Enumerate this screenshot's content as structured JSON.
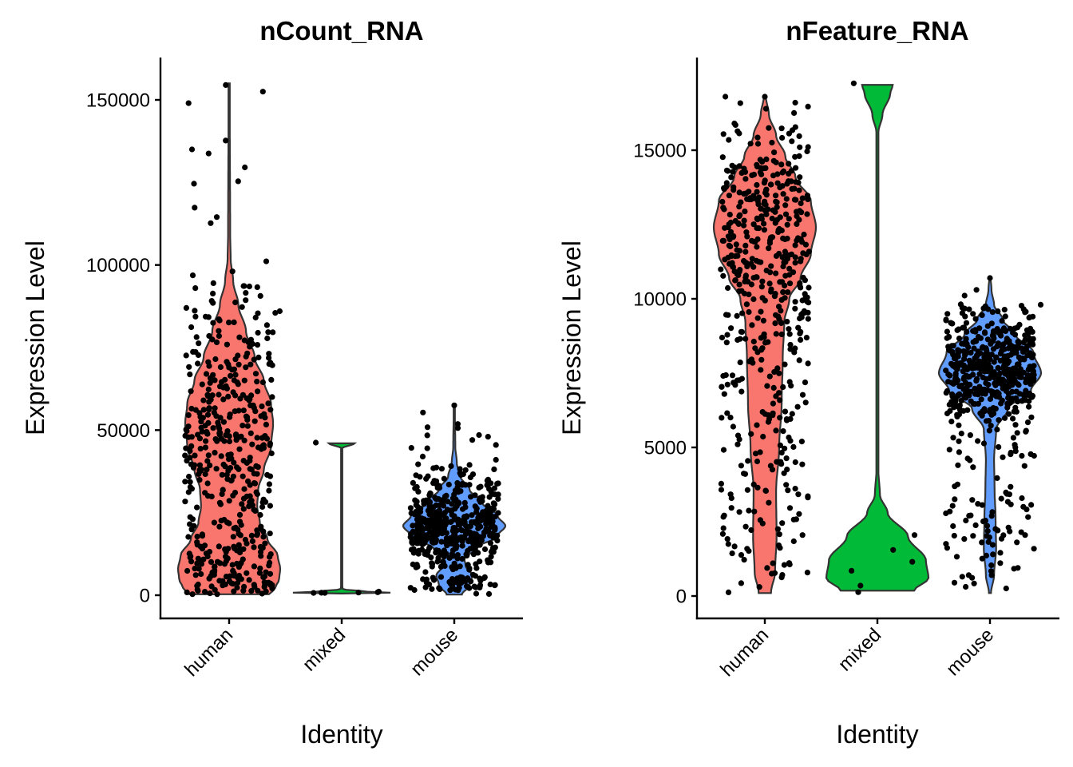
{
  "chart_data": [
    {
      "type": "violin",
      "title": "nCount_RNA",
      "xlabel": "Identity",
      "ylabel": "Expression Level",
      "categories": [
        "human",
        "mixed",
        "mouse"
      ],
      "colors": {
        "human": "#F8766D",
        "mixed": "#00BA38",
        "mouse": "#619CFF"
      },
      "yticks": [
        0,
        50000,
        100000,
        150000
      ],
      "ytick_labels": [
        "0",
        "50000",
        "100000",
        "150000"
      ],
      "ylim": [
        -7000,
        162000
      ],
      "grid": false,
      "violins": {
        "human": {
          "min": 300,
          "max": 155000,
          "density": [
            [
              300,
              0.78
            ],
            [
              2000,
              0.9
            ],
            [
              5000,
              0.98
            ],
            [
              8000,
              1.0
            ],
            [
              12000,
              0.95
            ],
            [
              17000,
              0.75
            ],
            [
              22000,
              0.6
            ],
            [
              27000,
              0.55
            ],
            [
              32000,
              0.57
            ],
            [
              38000,
              0.68
            ],
            [
              45000,
              0.82
            ],
            [
              52000,
              0.86
            ],
            [
              58000,
              0.82
            ],
            [
              65000,
              0.68
            ],
            [
              72000,
              0.5
            ],
            [
              80000,
              0.33
            ],
            [
              88000,
              0.18
            ],
            [
              95000,
              0.08
            ],
            [
              102000,
              0.03
            ],
            [
              110000,
              0.02
            ],
            [
              155000,
              0.01
            ]
          ]
        },
        "mixed": {
          "min": 500,
          "max": 46000,
          "density": [
            [
              500,
              0.03
            ],
            [
              700,
              1.0
            ],
            [
              1200,
              0.4
            ],
            [
              1800,
              0.02
            ],
            [
              3000,
              0.01
            ],
            [
              44500,
              0.01
            ],
            [
              46000,
              0.25
            ]
          ]
        },
        "mouse": {
          "min": 200,
          "max": 57500,
          "density": [
            [
              200,
              0.15
            ],
            [
              3000,
              0.3
            ],
            [
              6000,
              0.35
            ],
            [
              9000,
              0.22
            ],
            [
              11000,
              0.2
            ],
            [
              14000,
              0.4
            ],
            [
              18000,
              0.85
            ],
            [
              21000,
              1.0
            ],
            [
              24000,
              0.85
            ],
            [
              28000,
              0.55
            ],
            [
              32000,
              0.3
            ],
            [
              36000,
              0.12
            ],
            [
              40000,
              0.05
            ],
            [
              45000,
              0.02
            ],
            [
              57500,
              0.01
            ]
          ]
        }
      },
      "points": {
        "human": {
          "n": 480,
          "outliers": [
            [
              -0.36,
              149000
            ],
            [
              -0.33,
              135000
            ],
            [
              -0.11,
              114500
            ],
            [
              -0.03,
              154500
            ],
            [
              0.3,
              152500
            ],
            [
              -0.3,
              93000
            ],
            [
              -0.14,
              94500
            ],
            [
              0.18,
              93500
            ],
            [
              0.25,
              93300
            ],
            [
              -0.38,
              87000
            ],
            [
              0.45,
              86000
            ],
            [
              0.41,
              85500
            ]
          ]
        },
        "mixed": {
          "n": 0,
          "outliers": [
            [
              -0.23,
              46200
            ],
            [
              -0.25,
              700
            ],
            [
              -0.18,
              750
            ],
            [
              -0.15,
              700
            ],
            [
              0.15,
              800
            ],
            [
              0.32,
              900
            ],
            [
              0.33,
              1100
            ]
          ]
        },
        "mouse": {
          "n": 520,
          "outliers": [
            [
              0.0,
              57500
            ],
            [
              0.22,
              48500
            ],
            [
              0.3,
              48000
            ],
            [
              0.37,
              45500
            ],
            [
              0.16,
              47000
            ],
            [
              -0.28,
              42000
            ],
            [
              -0.24,
              44500
            ],
            [
              0.37,
              41000
            ]
          ]
        }
      }
    },
    {
      "type": "violin",
      "title": "nFeature_RNA",
      "xlabel": "Identity",
      "ylabel": "Expression Level",
      "categories": [
        "human",
        "mixed",
        "mouse"
      ],
      "colors": {
        "human": "#F8766D",
        "mixed": "#00BA38",
        "mouse": "#619CFF"
      },
      "yticks": [
        0,
        5000,
        10000,
        15000
      ],
      "ytick_labels": [
        "0",
        "5000",
        "10000",
        "15000"
      ],
      "ylim": [
        -700,
        18200
      ],
      "grid": false,
      "violins": {
        "human": {
          "min": 100,
          "max": 16800,
          "density": [
            [
              100,
              0.12
            ],
            [
              800,
              0.2
            ],
            [
              2000,
              0.23
            ],
            [
              3500,
              0.22
            ],
            [
              5000,
              0.28
            ],
            [
              6500,
              0.33
            ],
            [
              8000,
              0.35
            ],
            [
              9200,
              0.38
            ],
            [
              10000,
              0.48
            ],
            [
              10700,
              0.7
            ],
            [
              11500,
              0.9
            ],
            [
              12400,
              1.0
            ],
            [
              13300,
              0.9
            ],
            [
              14100,
              0.6
            ],
            [
              14800,
              0.4
            ],
            [
              15500,
              0.22
            ],
            [
              16200,
              0.08
            ],
            [
              16800,
              0.02
            ]
          ]
        },
        "mixed": {
          "min": 180,
          "max": 17200,
          "density": [
            [
              180,
              0.72
            ],
            [
              600,
              1.0
            ],
            [
              1200,
              0.95
            ],
            [
              2000,
              0.6
            ],
            [
              2800,
              0.2
            ],
            [
              3400,
              0.05
            ],
            [
              4200,
              0.02
            ],
            [
              15600,
              0.02
            ],
            [
              16200,
              0.1
            ],
            [
              16900,
              0.25
            ],
            [
              17200,
              0.3
            ]
          ]
        },
        "mouse": {
          "min": 100,
          "max": 10750,
          "density": [
            [
              100,
              0.02
            ],
            [
              700,
              0.08
            ],
            [
              1600,
              0.12
            ],
            [
              2600,
              0.11
            ],
            [
              3600,
              0.09
            ],
            [
              4600,
              0.08
            ],
            [
              5600,
              0.12
            ],
            [
              6300,
              0.35
            ],
            [
              6900,
              0.8
            ],
            [
              7500,
              1.0
            ],
            [
              8200,
              0.85
            ],
            [
              8800,
              0.5
            ],
            [
              9300,
              0.25
            ],
            [
              9800,
              0.08
            ],
            [
              10300,
              0.03
            ],
            [
              10750,
              0.01
            ]
          ]
        }
      },
      "points": {
        "human": {
          "n": 520,
          "outliers": [
            [
              -0.35,
              16800
            ],
            [
              0.0,
              16800
            ],
            [
              0.27,
              16600
            ],
            [
              -0.27,
              15900
            ],
            [
              -0.26,
              15850
            ],
            [
              0.24,
              15300
            ],
            [
              0.31,
              15100
            ]
          ]
        },
        "mixed": {
          "n": 0,
          "outliers": [
            [
              -0.21,
              17250
            ],
            [
              0.33,
              2050
            ],
            [
              0.14,
              1550
            ],
            [
              0.31,
              1150
            ],
            [
              -0.23,
              850
            ],
            [
              -0.15,
              350
            ],
            [
              -0.17,
              130
            ]
          ]
        },
        "mouse": {
          "n": 560,
          "outliers": [
            [
              0.0,
              10700
            ],
            [
              -0.39,
              9300
            ],
            [
              0.45,
              9800
            ],
            [
              0.3,
              9650
            ],
            [
              0.38,
              9400
            ],
            [
              -0.12,
              10300
            ]
          ]
        }
      }
    }
  ]
}
